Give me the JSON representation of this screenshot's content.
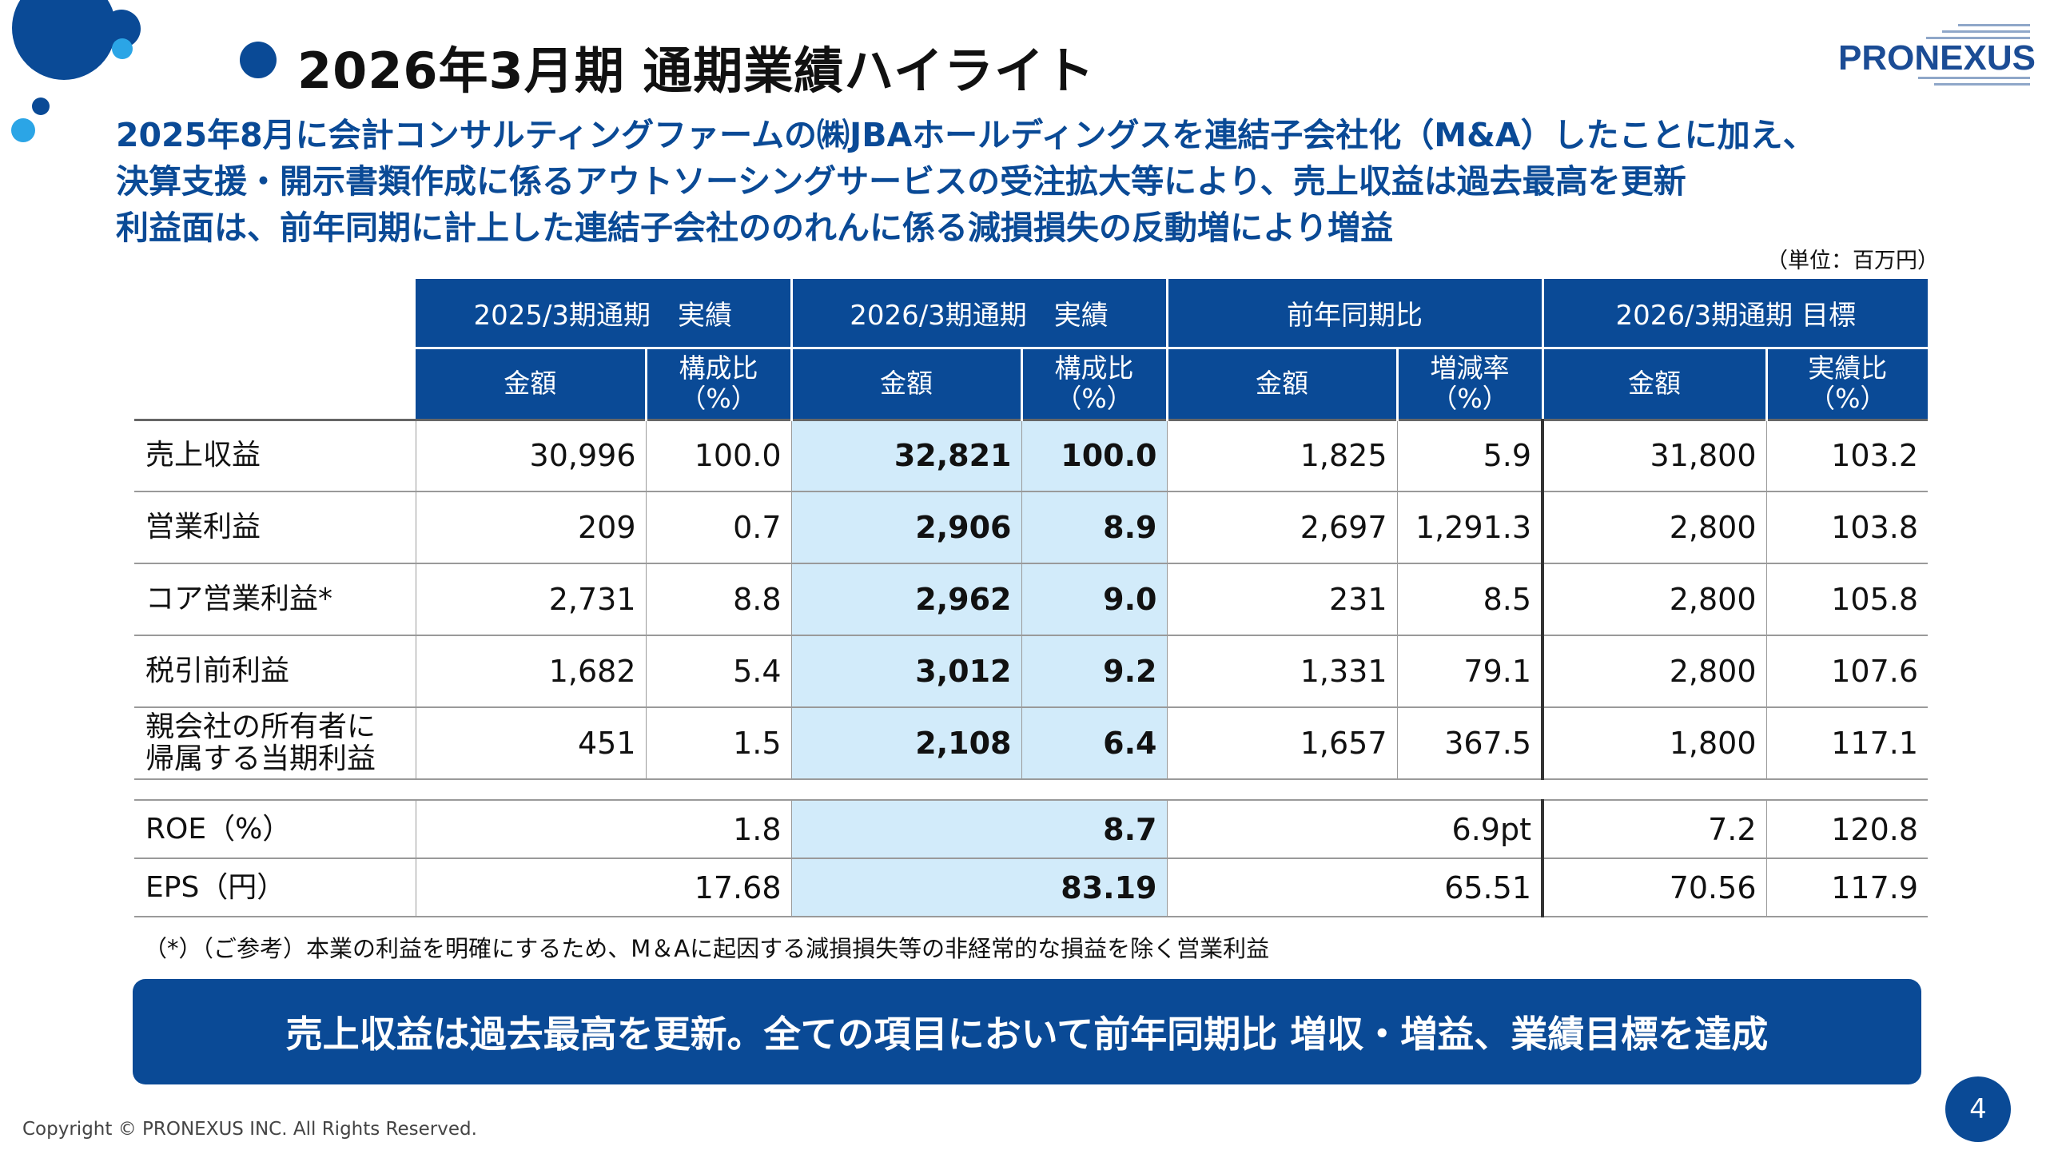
{
  "colors": {
    "brand": "#0a4a96",
    "accent": "#2ba5e6",
    "highlight": "#d2ebfa"
  },
  "title": "2026年3月期 通期業績ハイライト",
  "logo": "PRONEXUS",
  "lead": [
    "2025年8月に会計コンサルティングファームの㈱JBAホールディングスを連結子会社化（M&A）したことに加え、",
    "決算支援・開示書類作成に係るアウトソーシングサービスの受注拡大等により、売上収益は過去最高を更新",
    "利益面は、前年同期に計上した連結子会社ののれんに係る減損損失の反動増により増益"
  ],
  "unit": "（単位：百万円）",
  "table": {
    "groups": [
      "2025/3期通期　実績",
      "2026/3期通期　実績",
      "前年同期比",
      "2026/3期通期 目標"
    ],
    "subheaders": [
      "金額",
      "構成比\n（%）",
      "金額",
      "構成比\n（%）",
      "金額",
      "増減率\n（%）",
      "金額",
      "実績比\n（%）"
    ],
    "rows": [
      {
        "label": "売上収益",
        "cells": [
          "30,996",
          "100.0",
          "32,821",
          "100.0",
          "1,825",
          "5.9",
          "31,800",
          "103.2"
        ]
      },
      {
        "label": "営業利益",
        "cells": [
          "209",
          "0.7",
          "2,906",
          "8.9",
          "2,697",
          "1,291.3",
          "2,800",
          "103.8"
        ]
      },
      {
        "label": "コア営業利益*",
        "cells": [
          "2,731",
          "8.8",
          "2,962",
          "9.0",
          "231",
          "8.5",
          "2,800",
          "105.8"
        ]
      },
      {
        "label": "税引前利益",
        "cells": [
          "1,682",
          "5.4",
          "3,012",
          "9.2",
          "1,331",
          "79.1",
          "2,800",
          "107.6"
        ]
      },
      {
        "label": "親会社の所有者に\n帰属する当期利益",
        "cells": [
          "451",
          "1.5",
          "2,108",
          "6.4",
          "1,657",
          "367.5",
          "1,800",
          "117.1"
        ]
      }
    ],
    "rows2": [
      {
        "label": "ROE（%）",
        "cells": [
          "1.8",
          "8.7",
          "6.9pt",
          "7.2",
          "120.8"
        ]
      },
      {
        "label": "EPS（円）",
        "cells": [
          "17.68",
          "83.19",
          "65.51",
          "70.56",
          "117.9"
        ]
      }
    ]
  },
  "note": "（*）（ご参考）本業の利益を明確にするため、M＆Aに起因する減損損失等の非経常的な損益を除く営業利益",
  "banner": "売上収益は過去最高を更新。全ての項目において前年同期比 増収・増益、業績目標を達成",
  "copyright": "Copyright © PRONEXUS INC. All Rights Reserved.",
  "page_number": "4"
}
